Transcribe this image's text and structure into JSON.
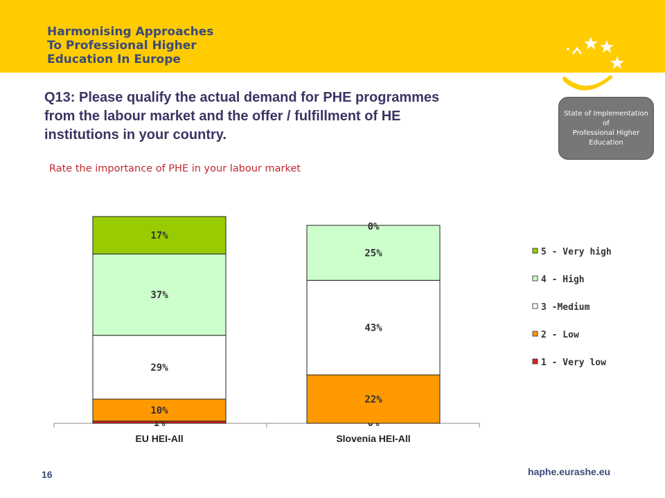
{
  "header": {
    "logo_lines": [
      "Harmonising Approaches",
      "To Professional Higher",
      "Education In Europe"
    ],
    "brand_color": "#ffcc00",
    "text_color": "#3b4a7a"
  },
  "badge": {
    "lines": [
      "State of Implementation",
      "of",
      "Professional Higher",
      "Education"
    ]
  },
  "question": {
    "lines": [
      "Q13: Please qualify the actual demand for PHE programmes",
      "from the labour market and the offer / fulfillment of HE",
      "institutions in your country."
    ]
  },
  "footer": {
    "page_number": "16",
    "website": "haphe.eurashe.eu"
  },
  "chart_data": {
    "type": "bar",
    "stacked": true,
    "title": "Rate the importance of PHE in your labour market",
    "categories": [
      "EU HEI-All",
      "Slovenia HEI-All"
    ],
    "ylim": [
      0,
      100
    ],
    "legend_position": "right",
    "grid": false,
    "series": [
      {
        "name": "1 - Very low",
        "color": "#e02020",
        "values": [
          1,
          0
        ],
        "labels": [
          "1%",
          "0%"
        ]
      },
      {
        "name": "2 - Low",
        "color": "#ff9900",
        "values": [
          10,
          22
        ],
        "labels": [
          "10%",
          "22%"
        ]
      },
      {
        "name": "3 -Medium",
        "color": "#ffffff",
        "values": [
          29,
          43
        ],
        "labels": [
          "29%",
          "43%"
        ]
      },
      {
        "name": "4 - High",
        "color": "#ccffcc",
        "values": [
          37,
          25
        ],
        "labels": [
          "37%",
          "25%"
        ]
      },
      {
        "name": "5 - Very high",
        "color": "#99cc00",
        "values": [
          17,
          0
        ],
        "labels": [
          "17%",
          "0%"
        ]
      }
    ],
    "legend_order": [
      "5 - Very high",
      "4 - High",
      "3 -Medium",
      "2 - Low",
      "1 - Very low"
    ]
  }
}
